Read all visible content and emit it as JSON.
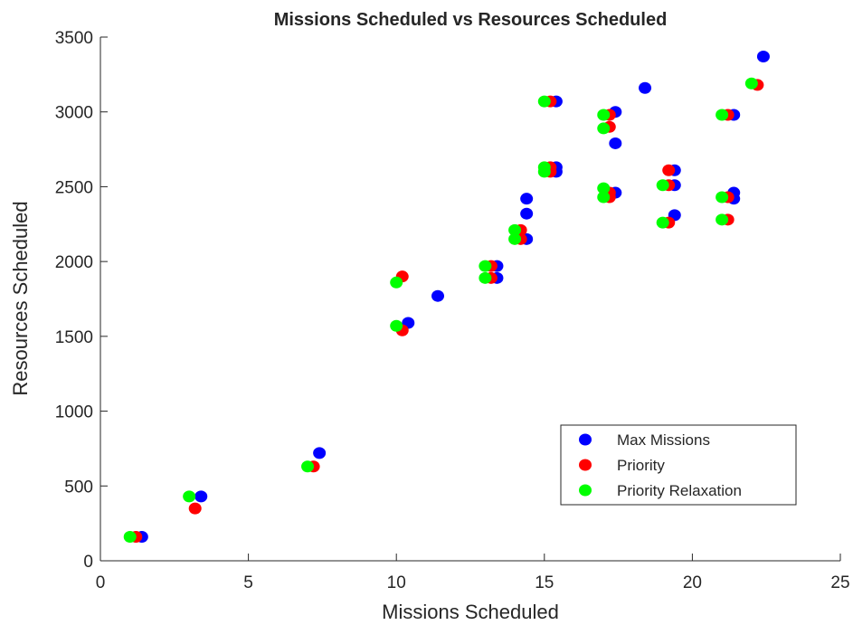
{
  "chart_data": {
    "type": "scatter",
    "title": "Missions Scheduled vs Resources Scheduled",
    "x_label": "Missions Scheduled",
    "y_label": "Resources Scheduled",
    "xlim": [
      0,
      25
    ],
    "xticks": [
      0,
      5,
      10,
      15,
      20,
      25
    ],
    "ylim": [
      0,
      3500
    ],
    "yticks": [
      0,
      500,
      1000,
      1500,
      2000,
      2500,
      3000,
      3500
    ],
    "legend": "lower right",
    "series": [
      {
        "name": "Max Missions",
        "color": "#0000ff",
        "x": [
          1.4,
          3.4,
          7.4,
          10.4,
          11.4,
          13.4,
          13.4,
          14.4,
          14.4,
          14.4,
          15.4,
          15.4,
          15.4,
          17.4,
          17.4,
          17.4,
          18.4,
          19.4,
          19.4,
          19.4,
          21.4,
          21.4,
          21.4,
          22.4
        ],
        "values": [
          160,
          430,
          720,
          1590,
          1770,
          1970,
          1890,
          2420,
          2320,
          2150,
          3070,
          2630,
          2600,
          3000,
          2790,
          2460,
          3160,
          2610,
          2510,
          2310,
          2980,
          2460,
          2420,
          3370
        ]
      },
      {
        "name": "Priority",
        "color": "#ff0000",
        "x": [
          1.2,
          3.2,
          7.2,
          10.2,
          10.2,
          13.2,
          13.2,
          14.2,
          14.2,
          15.2,
          15.2,
          15.2,
          17.2,
          17.2,
          17.2,
          17.2,
          19.2,
          19.2,
          19.2,
          21.2,
          21.2,
          21.2,
          22.2
        ],
        "values": [
          160,
          350,
          630,
          1900,
          1540,
          1970,
          1890,
          2210,
          2150,
          3070,
          2630,
          2600,
          2980,
          2900,
          2460,
          2430,
          2610,
          2510,
          2260,
          2980,
          2430,
          2280,
          3180
        ]
      },
      {
        "name": "Priority Relaxation",
        "color": "#00ff00",
        "x": [
          1,
          3,
          7,
          10,
          10,
          13,
          13,
          14,
          14,
          15,
          15,
          15,
          17,
          17,
          17,
          17,
          19,
          19,
          21,
          21,
          21,
          22
        ],
        "values": [
          160,
          430,
          630,
          1860,
          1570,
          1970,
          1890,
          2210,
          2150,
          3070,
          2630,
          2600,
          2980,
          2890,
          2490,
          2430,
          2510,
          2260,
          2980,
          2430,
          2280,
          3190
        ]
      }
    ]
  }
}
